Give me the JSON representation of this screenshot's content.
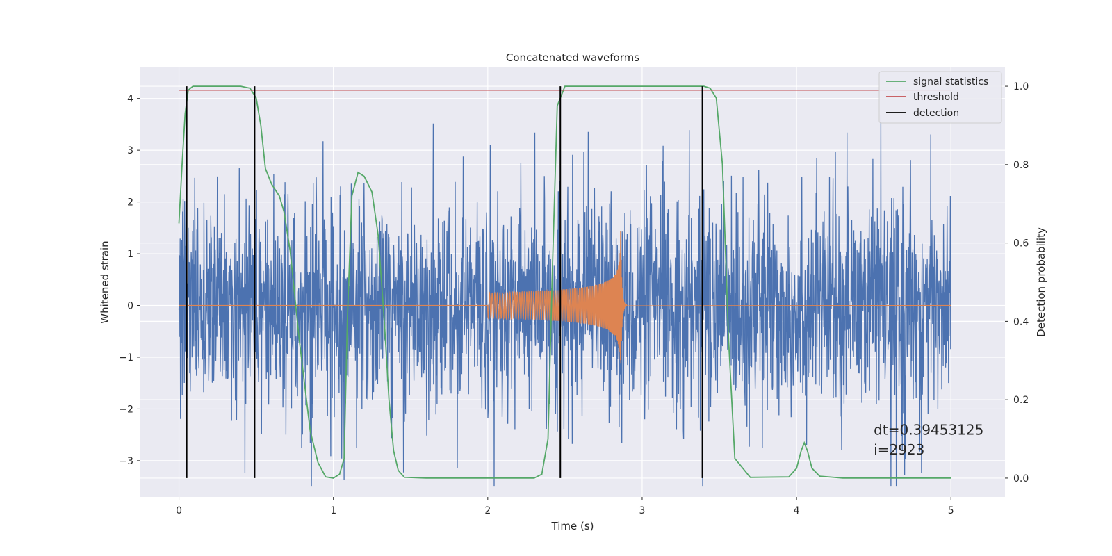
{
  "chart_data": {
    "type": "line",
    "title": "Concatenated waveforms",
    "xlabel": "Time (s)",
    "ylabel": "Whitened strain",
    "y2label": "Detection probability",
    "xlim": [
      -0.25,
      5.35
    ],
    "ylim": [
      -3.7,
      4.6
    ],
    "y2lim": [
      -0.048,
      1.048
    ],
    "xticks": [
      0,
      1,
      2,
      3,
      4,
      5
    ],
    "yticks": [
      -3,
      -2,
      -1,
      0,
      1,
      2,
      3,
      4
    ],
    "y2ticks": [
      0.0,
      0.2,
      0.4,
      0.6,
      0.8,
      1.0
    ],
    "ytick_labels": [
      "−3",
      "−2",
      "−1",
      "0",
      "1",
      "2",
      "3",
      "4"
    ],
    "y2tick_labels": [
      "0.0",
      "0.2",
      "0.4",
      "0.6",
      "0.8",
      "1.0"
    ],
    "grid": true,
    "legend_position": "top-right",
    "colors": {
      "strain": "#4c72b0",
      "injection": "#dd8452",
      "signal": "#55a868",
      "threshold": "#c44e52",
      "detection": "#000000",
      "background": "#eaeaf2",
      "grid": "#ffffff"
    },
    "series": [
      {
        "name": "signal statistics",
        "axis": "right",
        "x": [
          0.0,
          0.02,
          0.04,
          0.06,
          0.09,
          0.15,
          0.25,
          0.4,
          0.46,
          0.5,
          0.53,
          0.56,
          0.6,
          0.65,
          0.68,
          0.72,
          0.78,
          0.85,
          0.9,
          0.95,
          1.0,
          1.04,
          1.07,
          1.09,
          1.12,
          1.16,
          1.2,
          1.25,
          1.29,
          1.33,
          1.36,
          1.39,
          1.42,
          1.46,
          1.6,
          2.0,
          2.3,
          2.35,
          2.39,
          2.42,
          2.45,
          2.5,
          2.6,
          2.9,
          3.3,
          3.4,
          3.44,
          3.48,
          3.52,
          3.56,
          3.6,
          3.7,
          3.95,
          4.0,
          4.03,
          4.05,
          4.07,
          4.1,
          4.15,
          4.3,
          5.0
        ],
        "y": [
          0.65,
          0.8,
          0.93,
          0.99,
          1.0,
          1.0,
          1.0,
          1.0,
          0.995,
          0.97,
          0.9,
          0.79,
          0.75,
          0.72,
          0.68,
          0.58,
          0.35,
          0.12,
          0.04,
          0.003,
          0.0,
          0.01,
          0.05,
          0.4,
          0.72,
          0.78,
          0.77,
          0.73,
          0.62,
          0.4,
          0.2,
          0.07,
          0.02,
          0.002,
          0.0,
          0.0,
          0.0,
          0.01,
          0.1,
          0.55,
          0.95,
          1.0,
          1.0,
          1.0,
          1.0,
          1.0,
          0.995,
          0.97,
          0.8,
          0.35,
          0.05,
          0.002,
          0.003,
          0.025,
          0.07,
          0.09,
          0.07,
          0.025,
          0.005,
          0.0,
          0.0
        ]
      },
      {
        "name": "threshold",
        "axis": "right",
        "x": [
          0.0,
          5.0
        ],
        "y": [
          0.99,
          0.99
        ]
      },
      {
        "name": "detection",
        "axis": "right",
        "vlines": [
          0.05,
          0.49,
          2.47,
          3.39
        ],
        "ymin": 0.0,
        "ymax": 1.0
      },
      {
        "name": "",
        "axis": "left",
        "kind": "noise",
        "x_range": [
          0.0,
          5.0
        ],
        "sigma": 1.0
      },
      {
        "name": "",
        "axis": "left",
        "kind": "chirp",
        "x_range": [
          2.0,
          2.9
        ],
        "merger_time": 2.86,
        "peak_amplitude": 1.5
      }
    ],
    "annotations": [
      {
        "text": "dt=0.39453125",
        "x": 4.5,
        "y": -2.5
      },
      {
        "text": " i=2923",
        "x": 4.5,
        "y": -2.88
      }
    ]
  }
}
